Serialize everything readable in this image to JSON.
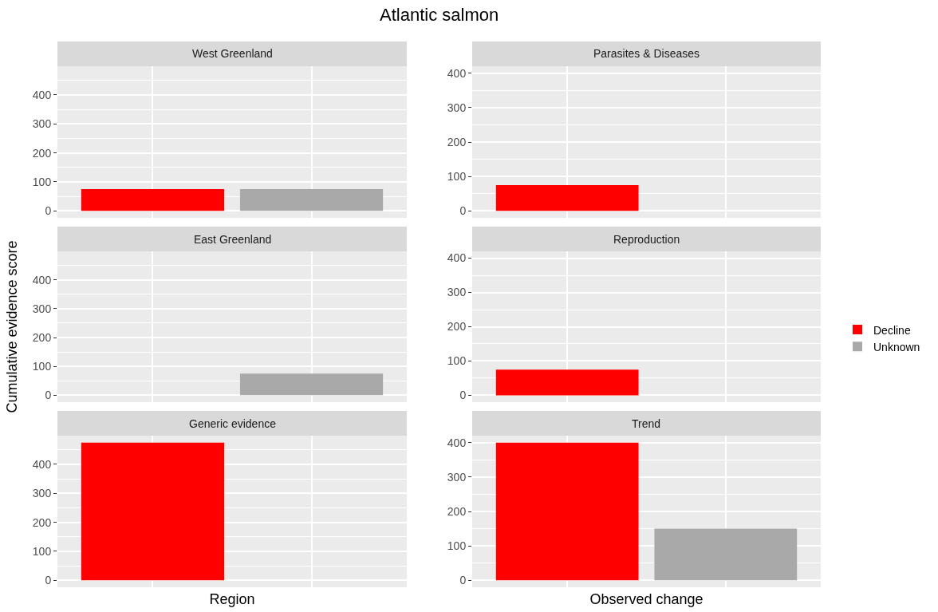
{
  "chart_data": [
    {
      "type": "bar",
      "title": "Atlantic salmon",
      "subtitle": "West Greenland",
      "categories": [
        null,
        null
      ],
      "series": [
        {
          "name": "Decline",
          "color": "#ff0000",
          "values": [
            75,
            null
          ]
        },
        {
          "name": "Unknown",
          "color": "#a9a9a9",
          "values": [
            null,
            75
          ]
        }
      ],
      "ylim": [
        -24,
        499
      ],
      "yticks": [
        0,
        100,
        200,
        300,
        400
      ],
      "grid": true,
      "tick_labels": "y",
      "legend": "right"
    },
    {
      "type": "bar",
      "title": "Parasites & Diseases",
      "categories": [
        null,
        null
      ],
      "series": [
        {
          "color": "#ff0000",
          "values": [
            75,
            null
          ]
        },
        {
          "color": "#a9a9a9",
          "values": [
            null,
            null
          ]
        }
      ],
      "ylim": [
        -20,
        420
      ],
      "yticks": [
        0,
        100,
        200,
        300,
        400
      ],
      "grid": true,
      "tick_labels": "y"
    },
    {
      "type": "bar",
      "title": "East Greenland",
      "ylabel": "Cumulative evidence score",
      "categories": [
        null,
        null
      ],
      "series": [
        {
          "color": "#ff0000",
          "values": [
            null,
            null
          ]
        },
        {
          "color": "#a9a9a9",
          "values": [
            null,
            75
          ]
        }
      ],
      "ylim": [
        -24,
        499
      ],
      "yticks": [
        0,
        100,
        200,
        300,
        400
      ],
      "grid": true,
      "tick_labels": "y"
    },
    {
      "type": "bar",
      "title": "Reproduction",
      "categories": [
        null,
        null
      ],
      "series": [
        {
          "color": "#ff0000",
          "values": [
            75,
            null
          ]
        },
        {
          "color": "#a9a9a9",
          "values": [
            null,
            null
          ]
        }
      ],
      "ylim": [
        -20,
        420
      ],
      "yticks": [
        0,
        100,
        200,
        300,
        400
      ],
      "grid": true,
      "tick_labels": "y"
    },
    {
      "type": "bar",
      "title": "Generic evidence",
      "xlabel": "Region",
      "categories": [
        null,
        null
      ],
      "series": [
        {
          "color": "#ff0000",
          "values": [
            475,
            null
          ]
        },
        {
          "color": "#a9a9a9",
          "values": [
            null,
            null
          ]
        }
      ],
      "ylim": [
        -24,
        499
      ],
      "yticks": [
        0,
        100,
        200,
        300,
        400
      ],
      "grid": true,
      "tick_labels": "y"
    },
    {
      "type": "bar",
      "title": "Trend",
      "xlabel": "Observed change",
      "categories": [
        null,
        null
      ],
      "series": [
        {
          "color": "#ff0000",
          "values": [
            400,
            null
          ]
        },
        {
          "color": "#a9a9a9",
          "values": [
            null,
            150
          ]
        }
      ],
      "ylim": [
        -20,
        420
      ],
      "yticks": [
        0,
        100,
        200,
        300,
        400
      ],
      "grid": true,
      "tick_labels": "y"
    }
  ]
}
